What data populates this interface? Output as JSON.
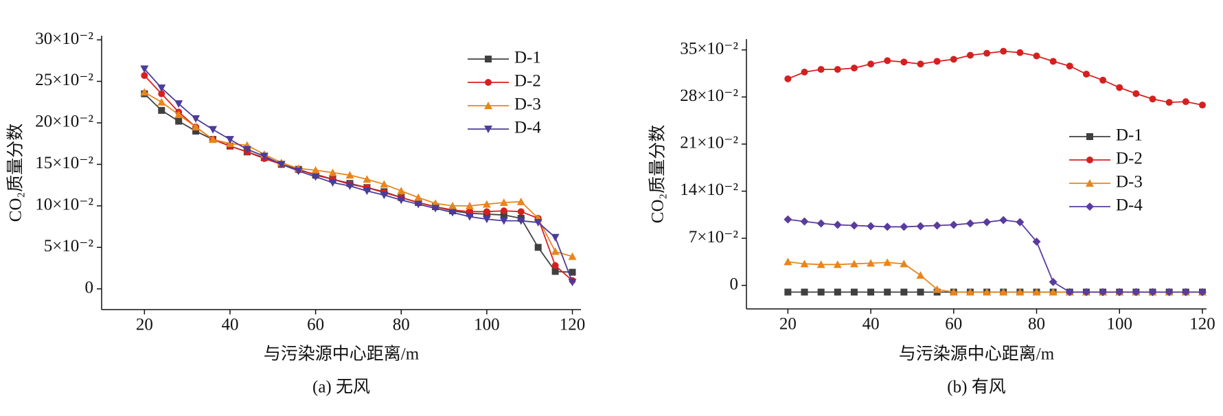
{
  "chart_data": [
    {
      "type": "line",
      "caption": "(a) 无风",
      "xlabel": "与污染源中心距离/m",
      "ylabel": "CO₂质量分数",
      "x": [
        20,
        24,
        28,
        32,
        36,
        40,
        44,
        48,
        52,
        56,
        60,
        64,
        68,
        72,
        76,
        80,
        84,
        88,
        92,
        96,
        100,
        104,
        108,
        112,
        116,
        120
      ],
      "xlim": [
        10,
        122
      ],
      "xticks": [
        20,
        40,
        60,
        80,
        100,
        120
      ],
      "ylim": [
        -0.025,
        0.305
      ],
      "yticks": [
        0,
        {
          "value": 0.05,
          "label": "5×10⁻²"
        },
        {
          "value": 0.1,
          "label": "10×10⁻²"
        },
        {
          "value": 0.15,
          "label": "15×10⁻²"
        },
        {
          "value": 0.2,
          "label": "20×10⁻²"
        },
        {
          "value": 0.25,
          "label": "25×10⁻²"
        },
        {
          "value": 0.3,
          "label": "30×10⁻²"
        }
      ],
      "legend": "upper right",
      "series": [
        {
          "name": "D-1",
          "color": "#404040",
          "marker": "square",
          "values": [
            0.235,
            0.215,
            0.202,
            0.19,
            0.18,
            0.172,
            0.165,
            0.158,
            0.15,
            0.144,
            0.137,
            0.132,
            0.127,
            0.122,
            0.117,
            0.11,
            0.104,
            0.099,
            0.094,
            0.091,
            0.09,
            0.089,
            0.085,
            0.05,
            0.021,
            0.02
          ]
        },
        {
          "name": "D-2",
          "color": "#d62020",
          "marker": "circle",
          "values": [
            0.257,
            0.235,
            0.213,
            0.195,
            0.18,
            0.172,
            0.165,
            0.157,
            0.15,
            0.143,
            0.138,
            0.132,
            0.126,
            0.122,
            0.116,
            0.11,
            0.104,
            0.099,
            0.095,
            0.093,
            0.093,
            0.094,
            0.093,
            0.085,
            0.028,
            0.01
          ]
        },
        {
          "name": "D-3",
          "color": "#e8861c",
          "marker": "triangle-up",
          "values": [
            0.237,
            0.225,
            0.21,
            0.195,
            0.18,
            0.175,
            0.173,
            0.162,
            0.152,
            0.145,
            0.143,
            0.14,
            0.137,
            0.132,
            0.126,
            0.118,
            0.11,
            0.103,
            0.1,
            0.1,
            0.102,
            0.104,
            0.105,
            0.085,
            0.045,
            0.039
          ]
        },
        {
          "name": "D-4",
          "color": "#4b3c9a",
          "marker": "triangle-down",
          "values": [
            0.265,
            0.242,
            0.223,
            0.205,
            0.192,
            0.18,
            0.168,
            0.16,
            0.15,
            0.142,
            0.135,
            0.128,
            0.124,
            0.118,
            0.113,
            0.107,
            0.102,
            0.097,
            0.092,
            0.087,
            0.084,
            0.082,
            0.082,
            0.08,
            0.062,
            0.008
          ]
        }
      ]
    },
    {
      "type": "line",
      "caption": "(b) 有风",
      "xlabel": "与污染源中心距离/m",
      "ylabel": "CO₂质量分数",
      "x": [
        20,
        24,
        28,
        32,
        36,
        40,
        44,
        48,
        52,
        56,
        60,
        64,
        68,
        72,
        76,
        80,
        84,
        88,
        92,
        96,
        100,
        104,
        108,
        112,
        116,
        120
      ],
      "xlim": [
        10,
        121
      ],
      "xticks": [
        20,
        40,
        60,
        80,
        100,
        120
      ],
      "ylim": [
        -0.035,
        0.366
      ],
      "yticks": [
        0,
        {
          "value": 0.07,
          "label": "7×10⁻²"
        },
        {
          "value": 0.14,
          "label": "14×10⁻²"
        },
        {
          "value": 0.21,
          "label": "21×10⁻²"
        },
        {
          "value": 0.28,
          "label": "28×10⁻²"
        },
        {
          "value": 0.35,
          "label": "35×10⁻²"
        }
      ],
      "legend": "center right",
      "series": [
        {
          "name": "D-1",
          "color": "#404040",
          "marker": "square",
          "values": [
            -0.01,
            -0.01,
            -0.01,
            -0.01,
            -0.01,
            -0.01,
            -0.01,
            -0.01,
            -0.01,
            -0.01,
            -0.01,
            -0.01,
            -0.01,
            -0.01,
            -0.01,
            -0.01,
            -0.01,
            -0.01,
            -0.01,
            -0.01,
            -0.01,
            -0.01,
            -0.01,
            -0.01,
            -0.01,
            -0.01
          ]
        },
        {
          "name": "D-2",
          "color": "#d62020",
          "marker": "circle",
          "values": [
            0.307,
            0.317,
            0.321,
            0.321,
            0.323,
            0.329,
            0.334,
            0.332,
            0.329,
            0.333,
            0.336,
            0.342,
            0.345,
            0.348,
            0.346,
            0.341,
            0.333,
            0.326,
            0.314,
            0.305,
            0.294,
            0.285,
            0.277,
            0.272,
            0.273,
            0.268
          ]
        },
        {
          "name": "D-3",
          "color": "#e8861c",
          "marker": "triangle-up",
          "values": [
            0.035,
            0.032,
            0.031,
            0.031,
            0.032,
            0.033,
            0.034,
            0.032,
            0.015,
            -0.006,
            -0.01,
            -0.01,
            -0.01,
            -0.01,
            -0.01,
            -0.01,
            -0.01,
            -0.01,
            -0.01,
            -0.01,
            -0.01,
            -0.01,
            -0.01,
            -0.01,
            -0.01,
            -0.01
          ]
        },
        {
          "name": "D-4",
          "color": "#5a3c9e",
          "marker": "diamond",
          "values": [
            0.098,
            0.095,
            0.092,
            0.09,
            0.089,
            0.088,
            0.087,
            0.087,
            0.088,
            0.089,
            0.09,
            0.092,
            0.094,
            0.097,
            0.094,
            0.065,
            0.005,
            -0.01,
            -0.01,
            -0.01,
            -0.01,
            -0.01,
            -0.01,
            -0.01,
            -0.01,
            -0.01
          ]
        }
      ]
    }
  ]
}
